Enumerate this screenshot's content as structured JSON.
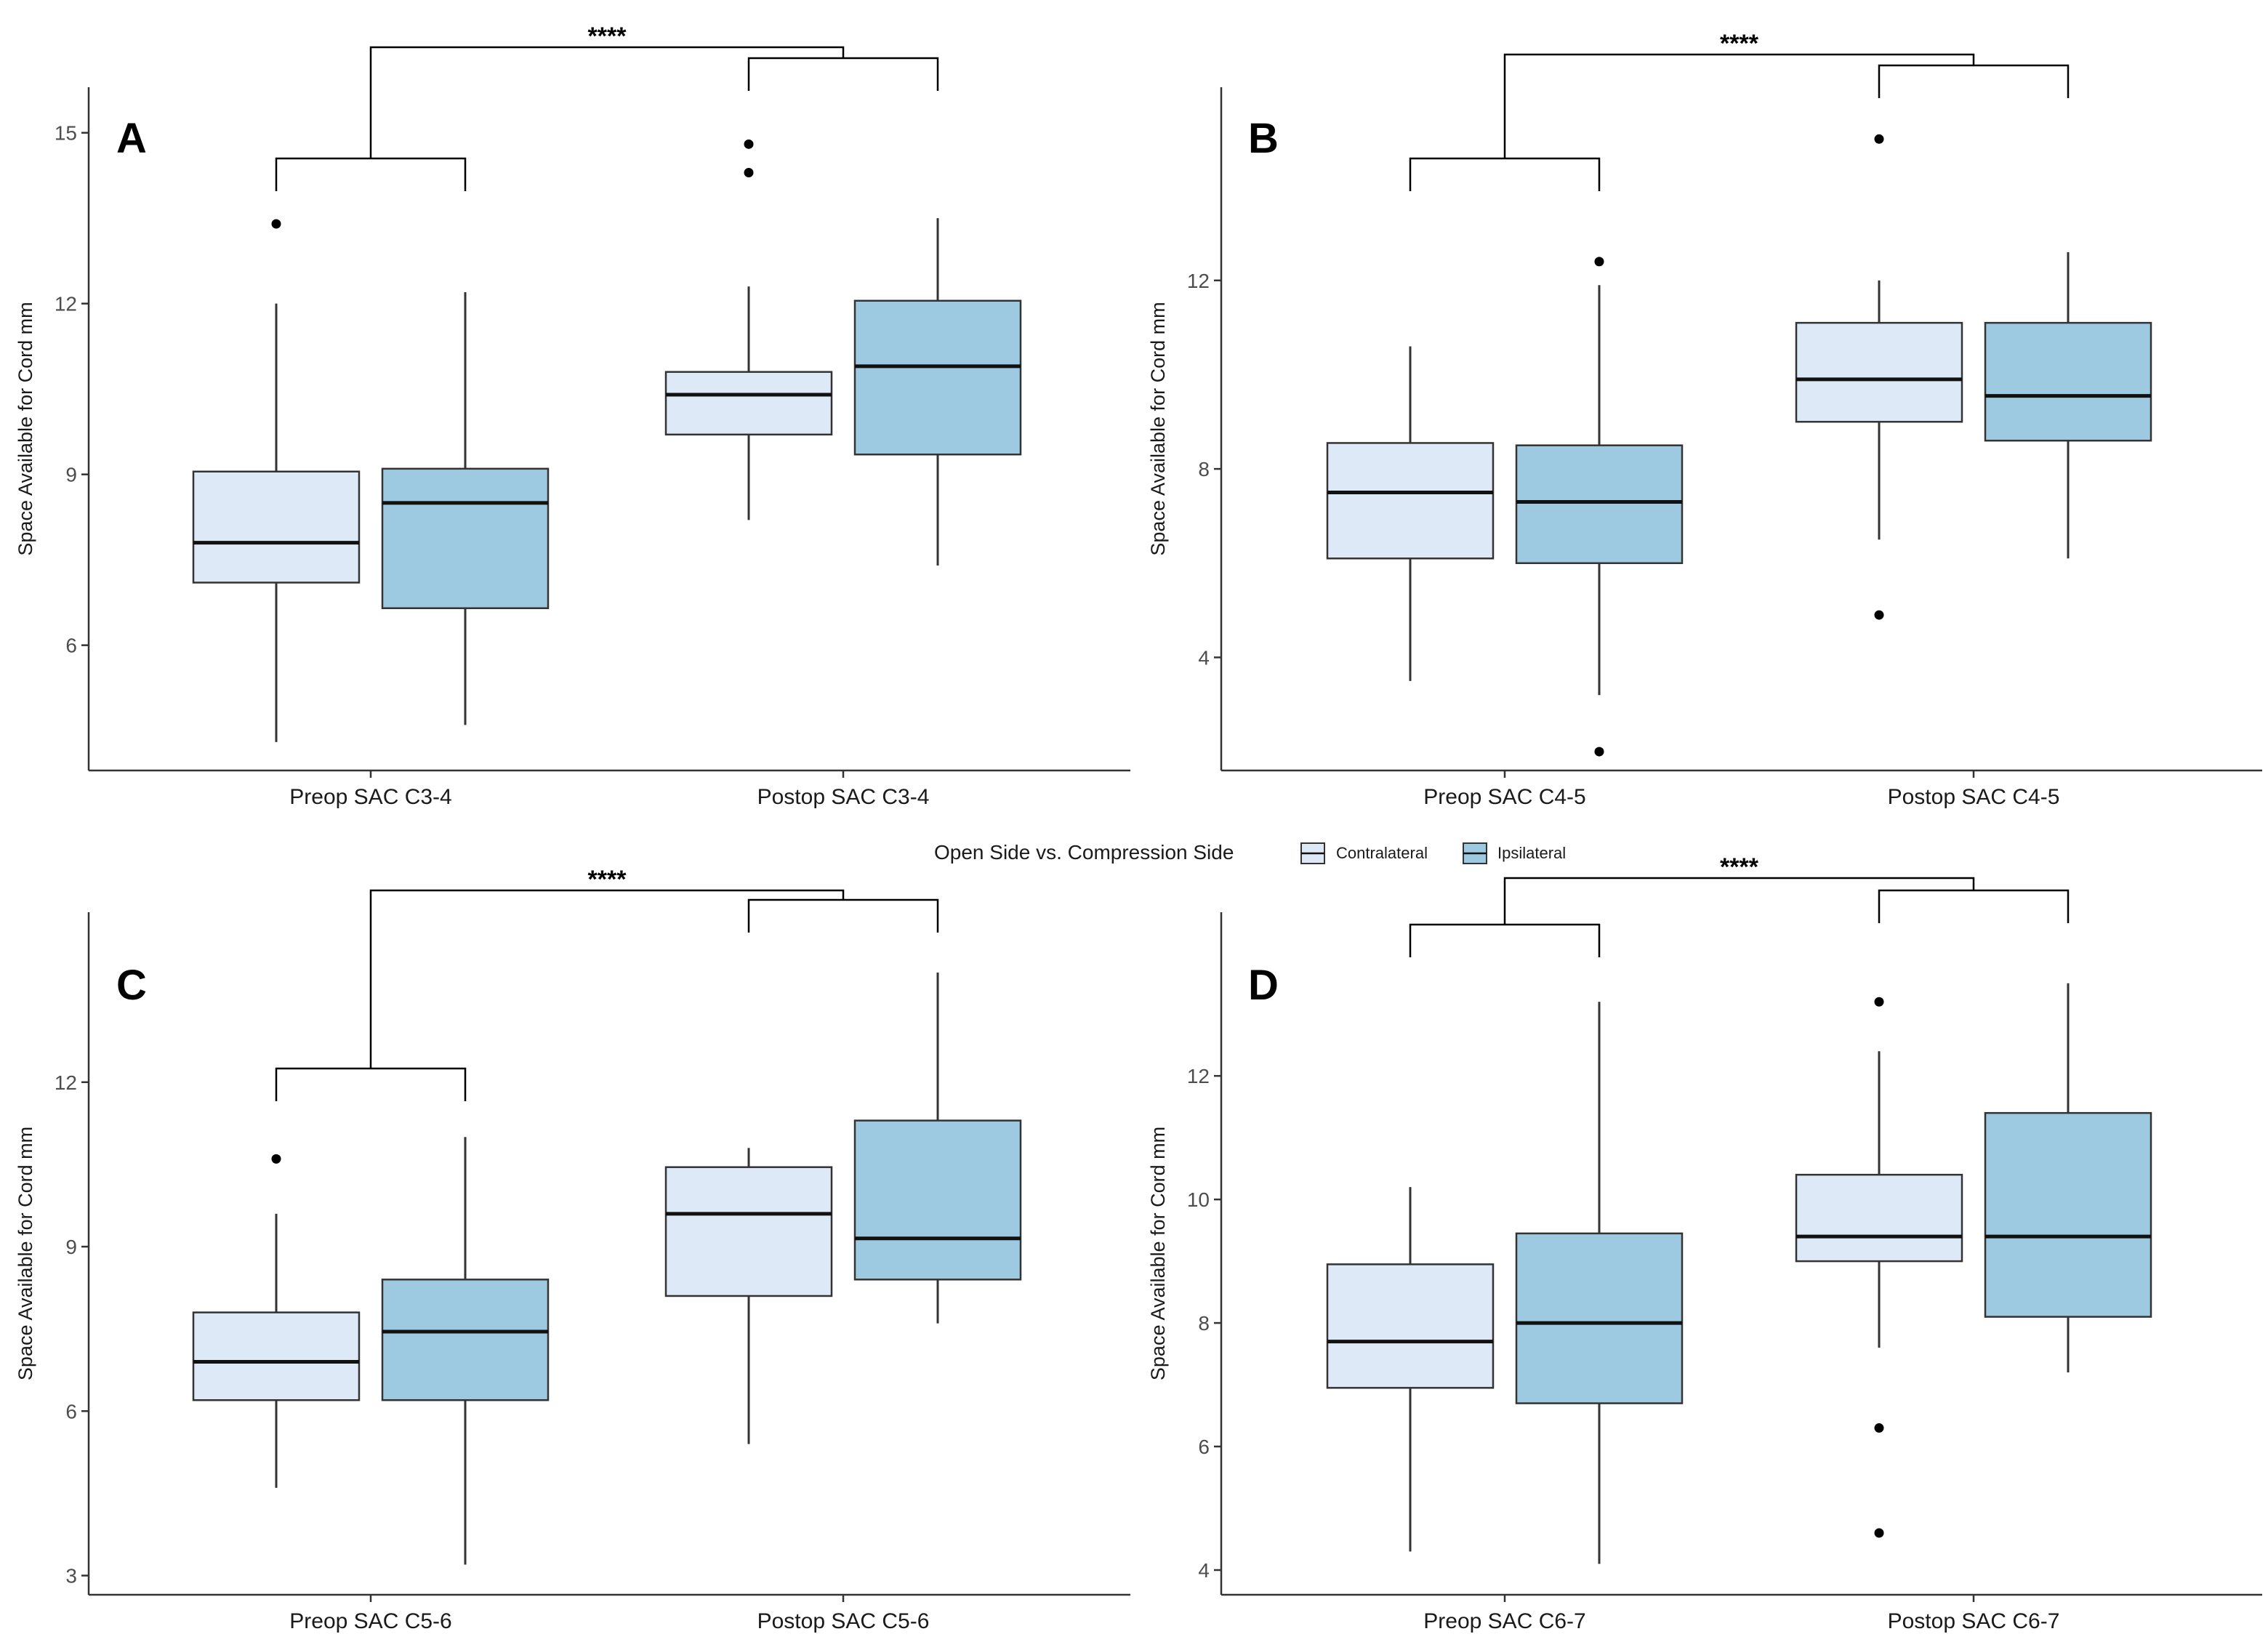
{
  "legend": {
    "title": "Open Side vs. Compression Side",
    "items": [
      {
        "label": "Contralateral",
        "color": "#dde9f6"
      },
      {
        "label": "Ipsilateral",
        "color": "#9ecae1"
      }
    ]
  },
  "colors": {
    "contralateral": "#dde9f6",
    "ipsilateral": "#9ecae1",
    "outline": "#333333",
    "median": "#111111"
  },
  "chart_data": [
    {
      "type": "box",
      "panel": "A",
      "ylabel": "Space Available for Cord mm",
      "ylim": [
        3.8,
        15.8
      ],
      "yticks": [
        6,
        9,
        12,
        15
      ],
      "ytick_labels": [
        "6",
        "9",
        "12",
        "15"
      ],
      "categories": [
        "Preop SAC C3-4",
        "Postop SAC C3-4"
      ],
      "significance": "****",
      "series": [
        {
          "name": "Contralateral",
          "boxes": [
            {
              "min": 4.3,
              "q1": 7.1,
              "median": 7.8,
              "q3": 9.05,
              "max": 12.0,
              "outliers": [
                13.4
              ]
            },
            {
              "min": 8.2,
              "q1": 9.7,
              "median": 10.4,
              "q3": 10.8,
              "max": 12.3,
              "outliers": [
                14.3,
                14.8
              ]
            }
          ]
        },
        {
          "name": "Ipsilateral",
          "boxes": [
            {
              "min": 4.6,
              "q1": 6.65,
              "median": 8.5,
              "q3": 9.1,
              "max": 12.2,
              "outliers": []
            },
            {
              "min": 7.4,
              "q1": 9.35,
              "median": 10.9,
              "q3": 12.05,
              "max": 13.5,
              "outliers": []
            }
          ]
        }
      ]
    },
    {
      "type": "box",
      "panel": "B",
      "ylabel": "Space Available for Cord mm",
      "ylim": [
        1.6,
        16.1
      ],
      "yticks": [
        4,
        8,
        12
      ],
      "ytick_labels": [
        "4",
        "8",
        "12"
      ],
      "categories": [
        "Preop SAC C4-5",
        "Postop SAC C4-5"
      ],
      "significance": "****",
      "series": [
        {
          "name": "Contralateral",
          "boxes": [
            {
              "min": 3.5,
              "q1": 6.1,
              "median": 7.5,
              "q3": 8.55,
              "max": 10.6,
              "outliers": []
            },
            {
              "min": 6.5,
              "q1": 9.0,
              "median": 9.9,
              "q3": 11.1,
              "max": 12.0,
              "outliers": [
                4.9,
                15.0
              ]
            }
          ]
        },
        {
          "name": "Ipsilateral",
          "boxes": [
            {
              "min": 3.2,
              "q1": 6.0,
              "median": 7.3,
              "q3": 8.5,
              "max": 11.9,
              "outliers": [
                2.0,
                12.4
              ]
            },
            {
              "min": 6.1,
              "q1": 8.6,
              "median": 9.55,
              "q3": 11.1,
              "max": 12.6,
              "outliers": []
            }
          ]
        }
      ]
    },
    {
      "type": "box",
      "panel": "C",
      "ylabel": "Space Available for Cord mm",
      "ylim": [
        2.65,
        15.1
      ],
      "yticks": [
        3,
        6,
        9,
        12
      ],
      "ytick_labels": [
        "3",
        "6",
        "9",
        "12"
      ],
      "categories": [
        "Preop SAC C5-6",
        "Postop SAC C5-6"
      ],
      "significance": "****",
      "series": [
        {
          "name": "Contralateral",
          "boxes": [
            {
              "min": 4.6,
              "q1": 6.2,
              "median": 6.9,
              "q3": 7.8,
              "max": 9.6,
              "outliers": [
                10.6
              ]
            },
            {
              "min": 5.4,
              "q1": 8.1,
              "median": 9.6,
              "q3": 10.45,
              "max": 10.8,
              "outliers": []
            }
          ]
        },
        {
          "name": "Ipsilateral",
          "boxes": [
            {
              "min": 3.2,
              "q1": 6.2,
              "median": 7.45,
              "q3": 8.4,
              "max": 11.0,
              "outliers": []
            },
            {
              "min": 7.6,
              "q1": 8.4,
              "median": 9.15,
              "q3": 11.3,
              "max": 14.0,
              "outliers": []
            }
          ]
        }
      ]
    },
    {
      "type": "box",
      "panel": "D",
      "ylabel": "Space Available for Cord mm",
      "ylim": [
        3.6,
        14.65
      ],
      "yticks": [
        4,
        6,
        8,
        10,
        12
      ],
      "ytick_labels": [
        "4",
        "6",
        "8",
        "10",
        "12"
      ],
      "categories": [
        "Preop SAC C6-7",
        "Postop SAC C6-7"
      ],
      "significance": "****",
      "series": [
        {
          "name": "Contralateral",
          "boxes": [
            {
              "min": 4.3,
              "q1": 6.95,
              "median": 7.7,
              "q3": 8.95,
              "max": 10.2,
              "outliers": []
            },
            {
              "min": 7.6,
              "q1": 9.0,
              "median": 9.4,
              "q3": 10.4,
              "max": 12.4,
              "outliers": [
                4.6,
                6.3,
                13.2
              ]
            }
          ]
        },
        {
          "name": "Ipsilateral",
          "boxes": [
            {
              "min": 4.1,
              "q1": 6.7,
              "median": 8.0,
              "q3": 9.45,
              "max": 13.2,
              "outliers": []
            },
            {
              "min": 7.2,
              "q1": 8.1,
              "median": 9.4,
              "q3": 11.4,
              "max": 13.5,
              "outliers": []
            }
          ]
        }
      ]
    }
  ]
}
